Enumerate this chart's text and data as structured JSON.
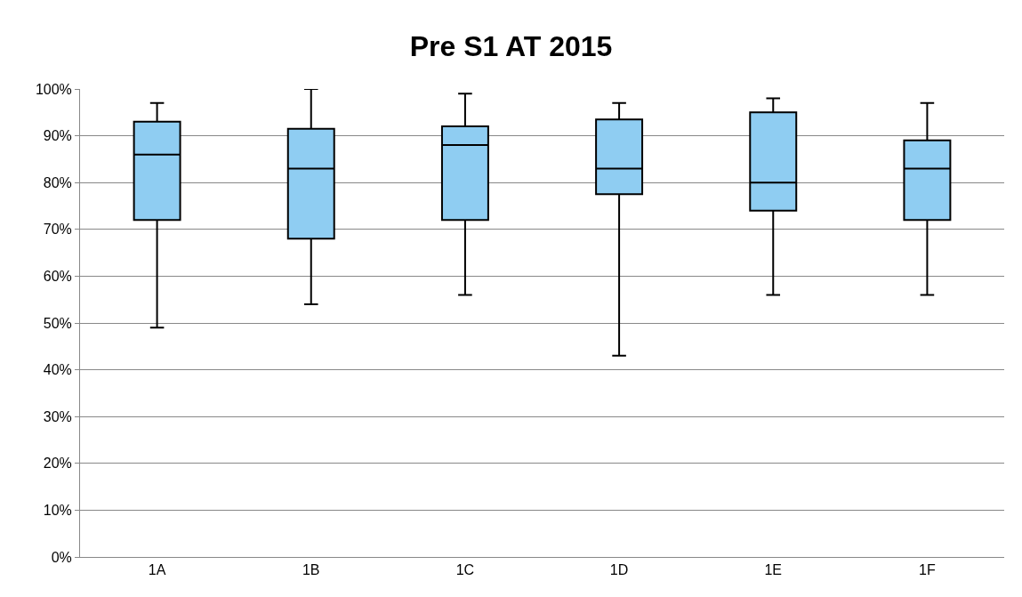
{
  "chart_data": {
    "type": "box",
    "title": "Pre S1 AT 2015",
    "categories": [
      "1A",
      "1B",
      "1C",
      "1D",
      "1E",
      "1F"
    ],
    "boxes": [
      {
        "low": 49,
        "q1": 72,
        "median": 86,
        "q3": 93,
        "high": 97
      },
      {
        "low": 54,
        "q1": 68,
        "median": 83,
        "q3": 91.5,
        "high": 100
      },
      {
        "low": 56,
        "q1": 72,
        "median": 88,
        "q3": 92,
        "high": 99
      },
      {
        "low": 43,
        "q1": 77.5,
        "median": 83,
        "q3": 93.5,
        "high": 97
      },
      {
        "low": 56,
        "q1": 74,
        "median": 80,
        "q3": 95,
        "high": 98
      },
      {
        "low": 56,
        "q1": 72,
        "median": 83,
        "q3": 89,
        "high": 97
      }
    ],
    "color": "#8fcdf2",
    "ylim": [
      0,
      100
    ],
    "yticks": [
      {
        "value": 0,
        "label": "0%"
      },
      {
        "value": 10,
        "label": "10%"
      },
      {
        "value": 20,
        "label": "20%"
      },
      {
        "value": 30,
        "label": "30%"
      },
      {
        "value": 40,
        "label": "40%"
      },
      {
        "value": 50,
        "label": "50%"
      },
      {
        "value": 60,
        "label": "60%"
      },
      {
        "value": 70,
        "label": "70%"
      },
      {
        "value": 80,
        "label": "80%"
      },
      {
        "value": 90,
        "label": "90%"
      },
      {
        "value": 100,
        "label": "100%"
      }
    ],
    "grid": "y"
  }
}
